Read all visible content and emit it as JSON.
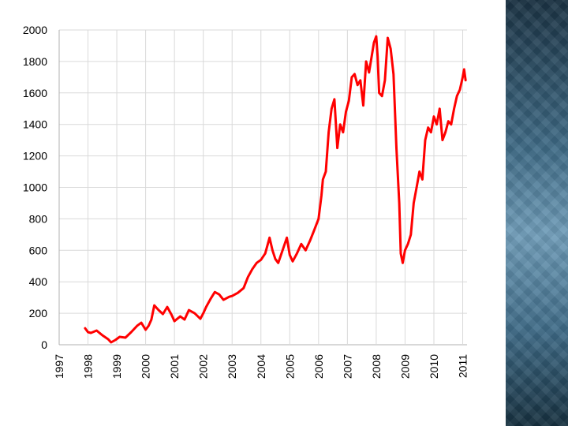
{
  "slide": {
    "accent_panel_color": "#3f6b86"
  },
  "chart_data": {
    "type": "line",
    "title": "",
    "xlabel": "",
    "ylabel": "",
    "xlim": [
      1997,
      2011.15
    ],
    "ylim": [
      0,
      2000
    ],
    "grid": "vertical and horizontal",
    "legend": "none",
    "line_color": "#ff0000",
    "x_tick_labels": [
      "1997",
      "1998",
      "1999",
      "2000",
      "2001",
      "2002",
      "2003",
      "2004",
      "2005",
      "2006",
      "2007",
      "2008",
      "2009",
      "2010",
      "2011"
    ],
    "y_tick_labels": [
      "0",
      "200",
      "400",
      "600",
      "800",
      "1000",
      "1200",
      "1400",
      "1600",
      "1800",
      "2000"
    ],
    "series": [
      {
        "x": [
          1997.9,
          1998.0,
          1998.1,
          1998.3,
          1998.5,
          1998.7,
          1998.8,
          1998.95,
          1999.1,
          1999.3,
          1999.5,
          1999.7,
          1999.85,
          2000.0,
          2000.1,
          2000.2,
          2000.3,
          2000.45,
          2000.6,
          2000.75,
          2000.9,
          2001.0,
          2001.2,
          2001.35,
          2001.5,
          2001.7,
          2001.9,
          2002.0,
          2002.1,
          2002.25,
          2002.4,
          2002.55,
          2002.7,
          2002.9,
          2003.0,
          2003.2,
          2003.4,
          2003.55,
          2003.7,
          2003.85,
          2004.0,
          2004.15,
          2004.3,
          2004.4,
          2004.5,
          2004.6,
          2004.75,
          2004.9,
          2005.0,
          2005.1,
          2005.25,
          2005.4,
          2005.55,
          2005.7,
          2005.85,
          2006.0,
          2006.1,
          2006.15,
          2006.25,
          2006.35,
          2006.45,
          2006.55,
          2006.65,
          2006.75,
          2006.85,
          2006.95,
          2007.05,
          2007.15,
          2007.25,
          2007.35,
          2007.45,
          2007.55,
          2007.65,
          2007.75,
          2007.85,
          2007.92,
          2008.0,
          2008.05,
          2008.1,
          2008.2,
          2008.3,
          2008.4,
          2008.5,
          2008.6,
          2008.7,
          2008.8,
          2008.85,
          2008.92,
          2009.0,
          2009.1,
          2009.2,
          2009.3,
          2009.4,
          2009.5,
          2009.6,
          2009.7,
          2009.8,
          2009.9,
          2010.0,
          2010.1,
          2010.2,
          2010.3,
          2010.4,
          2010.5,
          2010.6,
          2010.7,
          2010.8,
          2010.9,
          2011.0,
          2011.05,
          2011.1
        ],
        "y": [
          105,
          80,
          75,
          90,
          60,
          35,
          15,
          30,
          50,
          45,
          80,
          120,
          140,
          95,
          120,
          160,
          250,
          220,
          195,
          240,
          190,
          150,
          180,
          160,
          220,
          200,
          165,
          200,
          240,
          290,
          335,
          320,
          285,
          305,
          310,
          330,
          360,
          430,
          480,
          520,
          540,
          580,
          680,
          600,
          545,
          520,
          600,
          680,
          570,
          530,
          580,
          640,
          600,
          660,
          730,
          800,
          950,
          1050,
          1100,
          1350,
          1500,
          1560,
          1250,
          1400,
          1350,
          1480,
          1550,
          1700,
          1720,
          1650,
          1680,
          1520,
          1800,
          1730,
          1840,
          1920,
          1960,
          1830,
          1600,
          1580,
          1680,
          1950,
          1880,
          1720,
          1250,
          900,
          580,
          520,
          600,
          640,
          700,
          900,
          1000,
          1100,
          1050,
          1300,
          1380,
          1350,
          1450,
          1400,
          1500,
          1300,
          1350,
          1420,
          1400,
          1500,
          1580,
          1620,
          1700,
          1750,
          1680
        ]
      }
    ]
  }
}
